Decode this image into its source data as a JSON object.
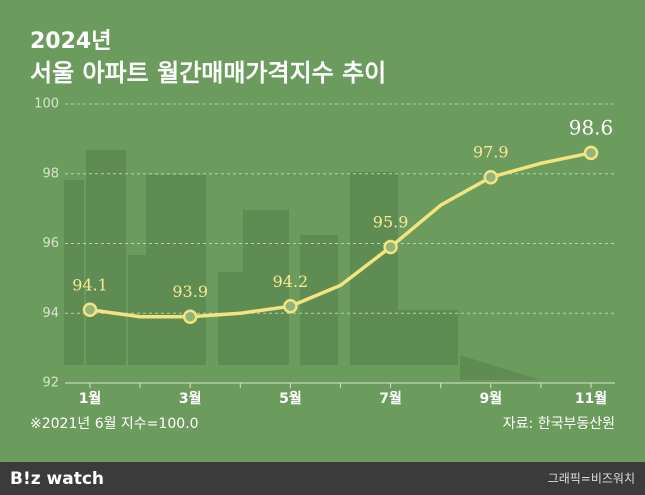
{
  "chart_data": {
    "type": "line",
    "title": "2024년",
    "subtitle": "서울 아파트 월간매매가격지수 추이",
    "note": "※2021년 6월 지수=100.0",
    "source": "자료: 한국부동산원",
    "categories": [
      "1월",
      null,
      "3월",
      null,
      "5월",
      null,
      "7월",
      null,
      "9월",
      null,
      "11월"
    ],
    "values": [
      94.1,
      93.9,
      93.9,
      94.0,
      94.2,
      94.8,
      95.9,
      97.1,
      97.9,
      98.3,
      98.6
    ],
    "color": "#f3e47f",
    "ylim": [
      92,
      100
    ],
    "yticks": [
      92,
      94,
      96,
      98,
      100
    ],
    "grid": true
  },
  "footer": {
    "logo": "B!z watch",
    "credit": "그래픽=비즈워치"
  }
}
